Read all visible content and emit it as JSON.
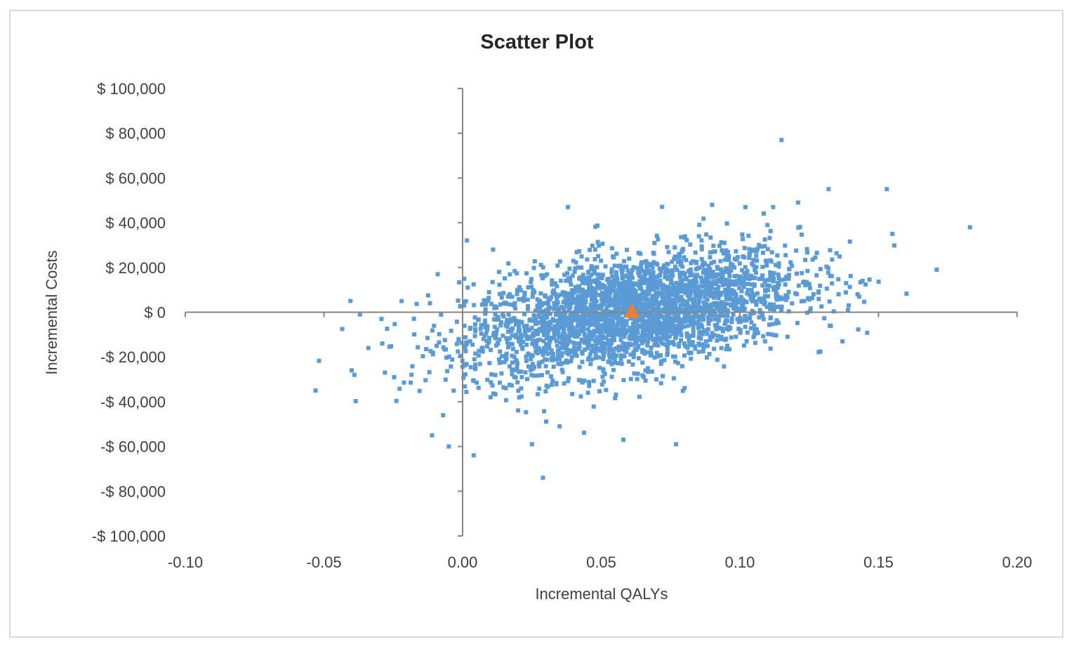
{
  "chart_data": {
    "type": "scatter",
    "title": "Scatter Plot",
    "xlabel": "Incremental QALYs",
    "ylabel": "Incremental Costs",
    "xlim": [
      -0.1,
      0.2
    ],
    "ylim": [
      -100000,
      100000
    ],
    "x_ticks": [
      -0.1,
      -0.05,
      0.0,
      0.05,
      0.1,
      0.15,
      0.2
    ],
    "x_tick_labels": [
      "-0.10",
      "-0.05",
      "0.00",
      "0.05",
      "0.10",
      "0.15",
      "0.20"
    ],
    "y_ticks": [
      100000,
      80000,
      60000,
      40000,
      20000,
      0,
      -20000,
      -40000,
      -60000,
      -80000,
      -100000
    ],
    "y_tick_labels": [
      "$ 100,000",
      "$ 80,000",
      "$ 60,000",
      "$ 40,000",
      "$ 20,000",
      "$ 0",
      "-$ 20,000",
      "-$ 40,000",
      "-$ 60,000",
      "-$ 80,000",
      "-$ 100,000"
    ],
    "grid": false,
    "legend": null,
    "axes_cross_at_origin": true,
    "series": [
      {
        "name": "Simulations",
        "marker": "square",
        "color": "#5b9bd5",
        "distribution": {
          "description": "Dense cloud of ~3000 probabilistic simulation points, positively correlated",
          "n": 3000,
          "mean_x": 0.061,
          "mean_y": 0,
          "sd_x": 0.03,
          "sd_y": 14000,
          "correlation": 0.45,
          "seed": 12345
        },
        "notable_points": [
          {
            "x": 0.115,
            "y": 77000
          },
          {
            "x": 0.183,
            "y": 38000
          },
          {
            "x": 0.171,
            "y": 19000
          },
          {
            "x": 0.153,
            "y": 55000
          },
          {
            "x": 0.132,
            "y": 55000
          },
          {
            "x": 0.155,
            "y": 35000
          },
          {
            "x": 0.139,
            "y": 1000
          },
          {
            "x": 0.137,
            "y": -13000
          },
          {
            "x": -0.053,
            "y": -35000
          },
          {
            "x": -0.04,
            "y": -26000
          },
          {
            "x": -0.039,
            "y": -28000
          },
          {
            "x": -0.034,
            "y": -16000
          },
          {
            "x": -0.028,
            "y": -27000
          },
          {
            "x": -0.037,
            "y": -1000
          },
          {
            "x": -0.011,
            "y": -55000
          },
          {
            "x": -0.005,
            "y": -60000
          },
          {
            "x": 0.004,
            "y": -64000
          },
          {
            "x": 0.029,
            "y": -74000
          },
          {
            "x": 0.025,
            "y": -59000
          },
          {
            "x": 0.058,
            "y": -57000
          },
          {
            "x": 0.077,
            "y": -59000
          },
          {
            "x": 0.035,
            "y": -51000
          },
          {
            "x": 0.038,
            "y": 47000
          },
          {
            "x": 0.09,
            "y": 48000
          },
          {
            "x": 0.121,
            "y": 49000
          },
          {
            "x": 0.102,
            "y": 47000
          },
          {
            "x": 0.112,
            "y": 47000
          },
          {
            "x": 0.011,
            "y": 28000
          },
          {
            "x": -0.009,
            "y": 17000
          },
          {
            "x": -0.022,
            "y": 5000
          }
        ]
      },
      {
        "name": "Mean",
        "marker": "triangle",
        "color": "#ed7d31",
        "points": [
          {
            "x": 0.061,
            "y": 0
          }
        ]
      }
    ]
  },
  "axes": {
    "color": "#868686"
  }
}
